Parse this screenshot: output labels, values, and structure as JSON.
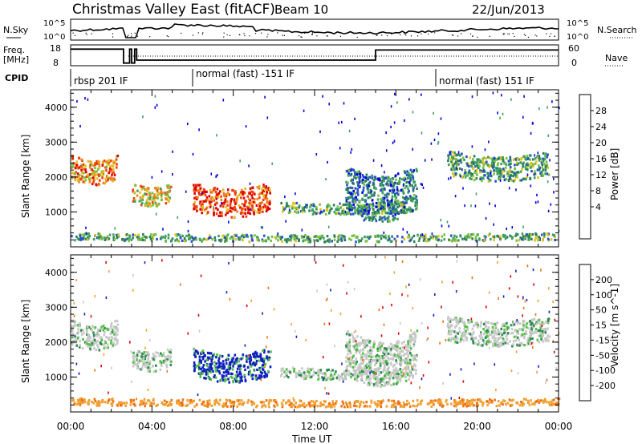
{
  "header": {
    "title": "Christmas Valley East (fitACF)",
    "beam": "Beam 10",
    "date": "22/Jun/2013"
  },
  "noise_panel": {
    "left_label": "N.Sky",
    "left_ticks": [
      "10^5",
      "10^0"
    ],
    "right_label": "N.Search",
    "right_ticks": [
      "10^5",
      "10^0"
    ]
  },
  "freq_panel": {
    "left_label_line1": "Freq.",
    "left_label_line2": "[MHz]",
    "left_ticks": [
      "18",
      "8"
    ],
    "right_label": "Nave",
    "right_ticks": [
      "60",
      "0"
    ],
    "freq_steps": [
      {
        "t0": 0.0,
        "t1": 2.6,
        "mhz": 16.5
      },
      {
        "t0": 2.6,
        "t1": 2.9,
        "mhz": 8.5
      },
      {
        "t0": 2.9,
        "t1": 3.0,
        "mhz": 16.5
      },
      {
        "t0": 3.0,
        "t1": 3.15,
        "mhz": 8.5
      },
      {
        "t0": 3.15,
        "t1": 3.25,
        "mhz": 16.5
      },
      {
        "t0": 3.25,
        "t1": 15.0,
        "mhz": 10.2
      },
      {
        "t0": 15.0,
        "t1": 24.0,
        "mhz": 16.0
      }
    ]
  },
  "cpid": {
    "label": "CPID",
    "segments": [
      {
        "start_hour": 0.0,
        "text": "rbsp 201 IF"
      },
      {
        "start_hour": 6.0,
        "text": "normal (fast) -151 IF"
      },
      {
        "start_hour": 18.0,
        "text": "normal (fast) 151 IF"
      }
    ]
  },
  "x_axis": {
    "label": "Time UT",
    "ticks": [
      "00:00",
      "04:00",
      "08:00",
      "12:00",
      "16:00",
      "20:00",
      "00:00"
    ]
  },
  "power_panel": {
    "ylabel": "Slant Range [km]",
    "yticks": [
      "4000",
      "3000",
      "2000",
      "1000"
    ],
    "colorbar_label": "Power [dB]",
    "colorbar_ticks": [
      "28",
      "24",
      "20",
      "16",
      "12",
      "8",
      "4"
    ],
    "colors": [
      "#0000e0",
      "#2850c8",
      "#2a7e5a",
      "#3ca060",
      "#78c040",
      "#e0c020",
      "#f08020",
      "#f04010",
      "#e00000"
    ]
  },
  "velocity_panel": {
    "ylabel": "Slant Range [km]",
    "yticks": [
      "4000",
      "3000",
      "2000",
      "1000"
    ],
    "colorbar_label": "Velocity [m s^-1]",
    "colorbar_ticks": [
      "200",
      "100",
      "50",
      "15",
      "-15",
      "-50",
      "-100",
      "-200"
    ],
    "colors": [
      "#1020c0",
      "#2060b0",
      "#2a8a50",
      "#50c040",
      "#c8c8c8",
      "#f0a030",
      "#f07010",
      "#e03010",
      "#e00000"
    ]
  },
  "chart_data": {
    "type": "heatmap",
    "time_range_hours": [
      0,
      24
    ],
    "range_km": [
      0,
      4500
    ],
    "features": [
      {
        "name_shown": false,
        "start_h": 0.0,
        "end_h": 2.3,
        "r0_km": 1900,
        "r1_km": 2600,
        "power_db": 20,
        "velocity": 0
      },
      {
        "name_shown": false,
        "start_h": 3.0,
        "end_h": 4.9,
        "r0_km": 1250,
        "r1_km": 1800,
        "power_db": 16,
        "velocity": 0
      },
      {
        "name_shown": false,
        "start_h": 6.0,
        "end_h": 9.8,
        "r0_km": 1000,
        "r1_km": 1800,
        "power_db": 24,
        "velocity": 150
      },
      {
        "name_shown": false,
        "start_h": 10.3,
        "end_h": 16.5,
        "r0_km": 950,
        "r1_km": 1250,
        "power_db": 10,
        "velocity": -10
      },
      {
        "name_shown": false,
        "start_h": 13.5,
        "end_h": 17.0,
        "r0_km": 1000,
        "r1_km": 2300,
        "power_db": 8,
        "velocity": 0
      },
      {
        "name_shown": false,
        "start_h": 18.5,
        "end_h": 23.5,
        "r0_km": 2000,
        "r1_km": 2700,
        "power_db": 10,
        "velocity": 0
      },
      {
        "name_shown": false,
        "start_h": 0.0,
        "end_h": 24.0,
        "r0_km": 150,
        "r1_km": 350,
        "power_db": 12,
        "velocity": -40
      }
    ]
  }
}
